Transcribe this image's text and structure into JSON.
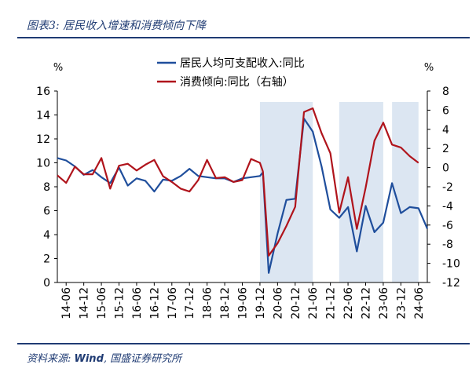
{
  "figure": {
    "title": "图表3:  居民收入增速和消费倾向下降",
    "source_prefix": "资料来源:  ",
    "source_wind": "Wind",
    "source_suffix": ",  国盛证券研究所"
  },
  "chart_data": {
    "type": "line",
    "title": "",
    "left_unit": "%",
    "right_unit": "%",
    "y_left": {
      "min": 0,
      "max": 16,
      "ticks": [
        0,
        2,
        4,
        6,
        8,
        10,
        12,
        14,
        16
      ]
    },
    "y_right": {
      "min": -12,
      "max": 8,
      "ticks": [
        -12,
        -10,
        -8,
        -6,
        -4,
        -2,
        0,
        2,
        4,
        6,
        8
      ]
    },
    "x_tick_labels": [
      "14-06",
      "14-12",
      "15-06",
      "15-12",
      "16-06",
      "16-12",
      "17-06",
      "17-12",
      "18-06",
      "18-12",
      "19-06",
      "19-12",
      "20-06",
      "20-12",
      "21-06",
      "21-12",
      "22-06",
      "22-12",
      "23-06",
      "23-12",
      "24-06"
    ],
    "legend": [
      "居民人均可支配收入:同比",
      "消费倾向:同比（右轴）"
    ],
    "legend_placement": "top-center",
    "shaded_ranges": [
      [
        "2019-12",
        "2021-06"
      ],
      [
        "2022-03",
        "2023-06"
      ],
      [
        "2023-09",
        "2024-06"
      ]
    ],
    "series": [
      {
        "name": "居民人均可支配收入:同比",
        "axis": "left",
        "color": "#1f4e9c",
        "points": [
          [
            "2014-03",
            10.4
          ],
          [
            "2014-06",
            10.2
          ],
          [
            "2014-09",
            9.7
          ],
          [
            "2014-12",
            9.0
          ],
          [
            "2015-03",
            9.4
          ],
          [
            "2015-06",
            8.8
          ],
          [
            "2015-09",
            8.3
          ],
          [
            "2015-12",
            9.6
          ],
          [
            "2016-03",
            8.1
          ],
          [
            "2016-06",
            8.7
          ],
          [
            "2016-09",
            8.5
          ],
          [
            "2016-12",
            7.6
          ],
          [
            "2017-03",
            8.6
          ],
          [
            "2017-06",
            8.5
          ],
          [
            "2017-09",
            8.9
          ],
          [
            "2017-12",
            9.5
          ],
          [
            "2018-03",
            8.9
          ],
          [
            "2018-06",
            8.8
          ],
          [
            "2018-09",
            8.7
          ],
          [
            "2018-12",
            8.7
          ],
          [
            "2019-03",
            8.4
          ],
          [
            "2019-06",
            8.7
          ],
          [
            "2019-09",
            8.8
          ],
          [
            "2019-12",
            8.9
          ],
          [
            "2020-01",
            9.2
          ],
          [
            "2020-03",
            0.8
          ],
          [
            "2020-06",
            4.1
          ],
          [
            "2020-09",
            6.9
          ],
          [
            "2020-12",
            7.0
          ],
          [
            "2021-03",
            13.7
          ],
          [
            "2021-06",
            12.6
          ],
          [
            "2021-09",
            9.7
          ],
          [
            "2021-12",
            6.1
          ],
          [
            "2022-03",
            5.4
          ],
          [
            "2022-06",
            6.3
          ],
          [
            "2022-09",
            2.6
          ],
          [
            "2022-12",
            6.4
          ],
          [
            "2023-03",
            4.2
          ],
          [
            "2023-06",
            5.0
          ],
          [
            "2023-09",
            8.3
          ],
          [
            "2023-12",
            5.8
          ],
          [
            "2024-03",
            6.3
          ],
          [
            "2024-06",
            6.2
          ],
          [
            "2024-09",
            4.5
          ]
        ]
      },
      {
        "name": "消费倾向:同比（右轴）",
        "axis": "right",
        "color": "#b0141c",
        "points": [
          [
            "2014-03",
            -0.8
          ],
          [
            "2014-06",
            -1.6
          ],
          [
            "2014-09",
            0.1
          ],
          [
            "2014-12",
            -0.7
          ],
          [
            "2015-03",
            -0.7
          ],
          [
            "2015-06",
            1.0
          ],
          [
            "2015-09",
            -2.2
          ],
          [
            "2015-12",
            0.2
          ],
          [
            "2016-03",
            0.4
          ],
          [
            "2016-06",
            -0.3
          ],
          [
            "2016-09",
            0.3
          ],
          [
            "2016-12",
            0.8
          ],
          [
            "2017-03",
            -0.9
          ],
          [
            "2017-06",
            -1.5
          ],
          [
            "2017-09",
            -2.2
          ],
          [
            "2017-12",
            -2.5
          ],
          [
            "2018-03",
            -1.3
          ],
          [
            "2018-06",
            0.8
          ],
          [
            "2018-09",
            -1.1
          ],
          [
            "2018-12",
            -1.0
          ],
          [
            "2019-03",
            -1.5
          ],
          [
            "2019-06",
            -1.3
          ],
          [
            "2019-09",
            0.9
          ],
          [
            "2019-12",
            0.5
          ],
          [
            "2020-01",
            -0.4
          ],
          [
            "2020-03",
            -9.2
          ],
          [
            "2020-06",
            -7.9
          ],
          [
            "2020-09",
            -6.1
          ],
          [
            "2020-12",
            -4.1
          ],
          [
            "2021-03",
            5.8
          ],
          [
            "2021-06",
            6.2
          ],
          [
            "2021-09",
            3.6
          ],
          [
            "2021-12",
            1.5
          ],
          [
            "2022-03",
            -4.7
          ],
          [
            "2022-06",
            -1.0
          ],
          [
            "2022-09",
            -6.4
          ],
          [
            "2022-12",
            -2.1
          ],
          [
            "2023-03",
            2.8
          ],
          [
            "2023-06",
            4.7
          ],
          [
            "2023-09",
            2.4
          ],
          [
            "2023-12",
            2.1
          ],
          [
            "2024-03",
            1.2
          ],
          [
            "2024-06",
            0.5
          ]
        ]
      }
    ]
  }
}
